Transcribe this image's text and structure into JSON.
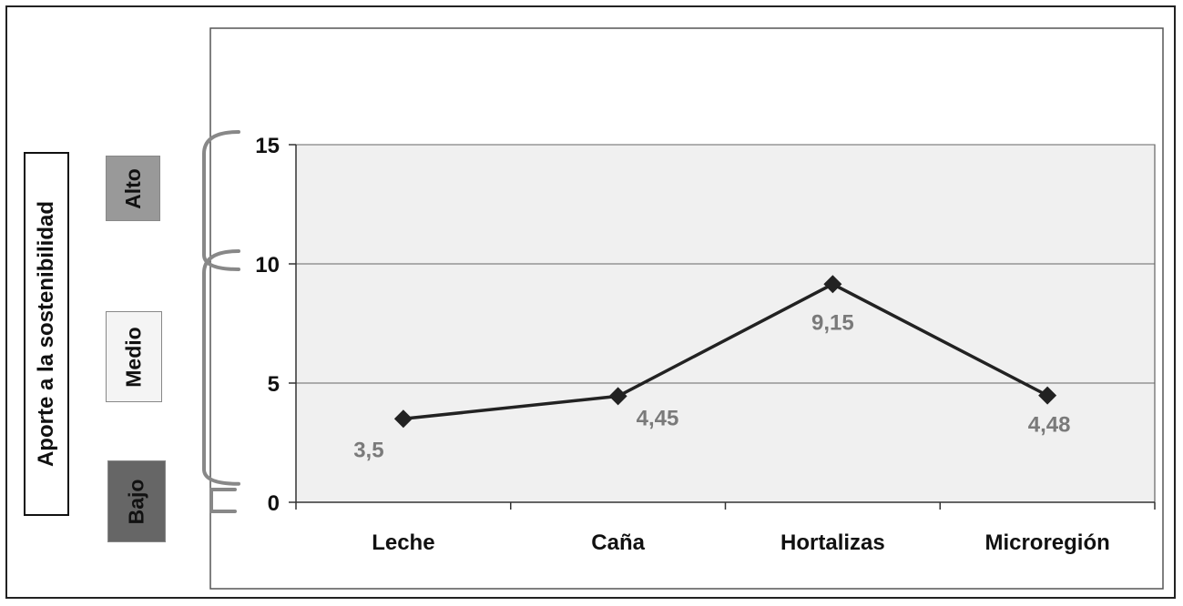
{
  "chart_data": {
    "type": "line",
    "title": "",
    "xlabel": "",
    "ylabel": "Aporte a la sostenibilidad",
    "categories": [
      "Leche",
      "Caña",
      "Hortalizas",
      "Microregión"
    ],
    "series": [
      {
        "values": [
          3.5,
          4.45,
          9.15,
          4.48
        ]
      }
    ],
    "data_labels": [
      "3,5",
      "4,45",
      "9,15",
      "4,48"
    ],
    "ylim": [
      0,
      15
    ],
    "yticks": [
      0,
      5,
      10,
      15
    ],
    "ytick_labels": [
      "0",
      "5",
      "10",
      "15"
    ],
    "grid": true,
    "levels": [
      {
        "label": "Alto",
        "range": [
          10,
          15
        ]
      },
      {
        "label": "Medio",
        "range": [
          1,
          10
        ]
      },
      {
        "label": "Bajo",
        "range": [
          0,
          0.5
        ]
      }
    ]
  },
  "colors": {
    "plot_background": "#f0f0f0",
    "line": "#222222",
    "data_label": "#7a7a7a",
    "bracket": "#888888",
    "alto": "#999999",
    "medio": "#f4f4f4",
    "bajo": "#666666"
  }
}
